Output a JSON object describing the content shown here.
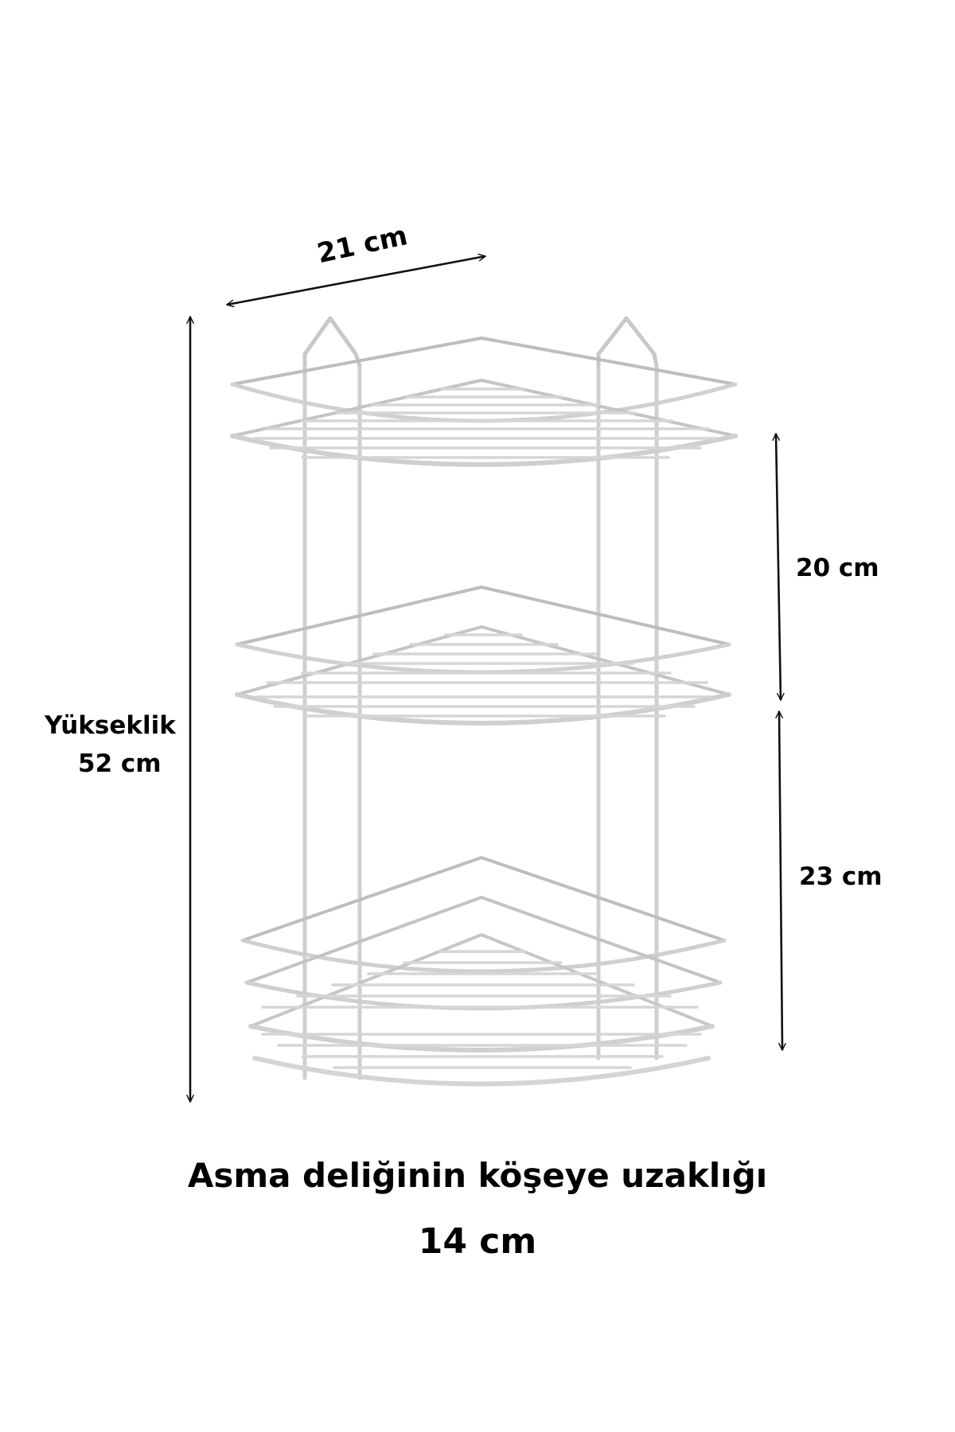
{
  "dimensions": {
    "width": "21 cm",
    "height_label": "Yükseklik",
    "height_value": "52 cm",
    "top_shelf_gap": "20 cm",
    "bottom_shelf_gap": "23 cm"
  },
  "caption": {
    "line1": "Asma deliğinin köşeye uzaklığı",
    "line2": "14 cm"
  },
  "colors": {
    "background": "#ffffff",
    "rack_wire": "#dcdcdc",
    "rack_wire_shade": "#b9b9b9",
    "arrow": "#111111"
  }
}
